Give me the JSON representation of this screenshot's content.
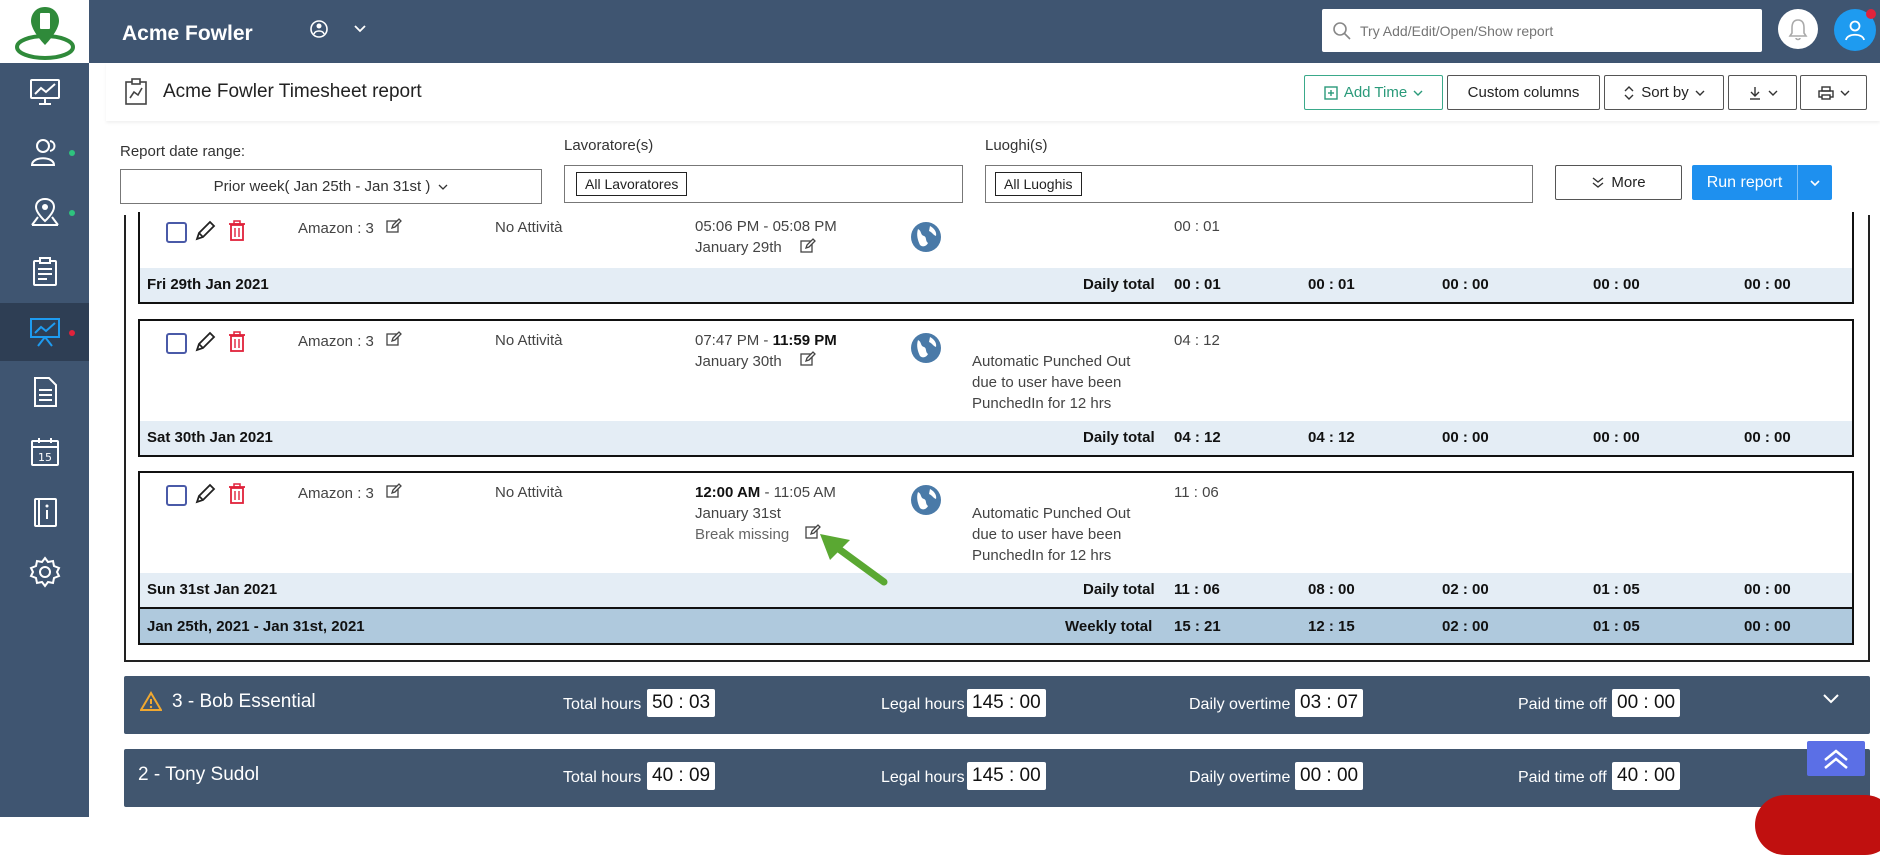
{
  "app": {
    "title": "Acme Fowler",
    "search_placeholder": "Try Add/Edit/Open/Show report"
  },
  "sidebar": {
    "items": [
      {
        "icon": "dashboard-icon",
        "dot": ""
      },
      {
        "icon": "users-icon",
        "dot": "#2ec27e"
      },
      {
        "icon": "map-pin-icon",
        "dot": "#2ec27e"
      },
      {
        "icon": "clipboard-icon",
        "dot": ""
      },
      {
        "icon": "reports-chart-icon",
        "dot": "#e0223b",
        "active": true
      },
      {
        "icon": "document-icon",
        "dot": ""
      },
      {
        "icon": "calendar-icon",
        "dot": ""
      },
      {
        "icon": "info-book-icon",
        "dot": ""
      },
      {
        "icon": "gear-icon",
        "dot": ""
      }
    ],
    "calendar_day": "15"
  },
  "report": {
    "title": "Acme Fowler Timesheet report",
    "buttons": {
      "add_time": "Add Time",
      "custom_columns": "Custom columns",
      "sort_by": "Sort by"
    }
  },
  "filters": {
    "date_range_label": "Report date range:",
    "date_range_value": "Prior week( Jan 25th - Jan 31st )",
    "workers_label": "Lavoratore(s)",
    "workers_chip": "All Lavoratores",
    "places_label": "Luoghi(s)",
    "places_chip": "All Luoghis",
    "more": "More",
    "run": "Run report"
  },
  "days": [
    {
      "job": "Amazon : 3",
      "activity": "No Attività",
      "time_start": "05:06 PM",
      "time_end": "05:08 PM",
      "date": "January 29th",
      "note": "",
      "duration": "00 : 01",
      "total_label": "Fri 29th Jan 2021",
      "daily_label": "Daily total",
      "totals": [
        "00 : 01",
        "00 : 01",
        "00 : 00",
        "00 : 00",
        "00 : 00"
      ]
    },
    {
      "job": "Amazon : 3",
      "activity": "No Attività",
      "time_start": "07:47 PM",
      "time_end": "11:59 PM",
      "date": "January 30th",
      "note": "Automatic Punched Out due to user have been PunchedIn for 12 hrs",
      "duration": "04 : 12",
      "total_label": "Sat 30th Jan 2021",
      "daily_label": "Daily total",
      "totals": [
        "04 : 12",
        "04 : 12",
        "00 : 00",
        "00 : 00",
        "00 : 00"
      ]
    },
    {
      "job": "Amazon : 3",
      "activity": "No Attività",
      "time_start": "12:00 AM",
      "time_end": "11:05 AM",
      "date": "January 31st",
      "warning": "Break missing",
      "note": "Automatic Punched Out due to user have been PunchedIn for 12 hrs",
      "duration": "11 : 06",
      "total_label": "Sun 31st Jan 2021",
      "daily_label": "Daily total",
      "totals": [
        "11 : 06",
        "08 : 00",
        "02 : 00",
        "01 : 05",
        "00 : 00"
      ]
    }
  ],
  "weekly": {
    "range": "Jan 25th, 2021  -  Jan 31st, 2021",
    "label": "Weekly total",
    "totals": [
      "15 : 21",
      "12 : 15",
      "02 : 00",
      "01 : 05",
      "00 : 00"
    ]
  },
  "employees": [
    {
      "name": "3 - Bob Essential",
      "warning": true,
      "total_hours_label": "Total hours",
      "total_hours": "50 : 03",
      "legal_hours_label": "Legal hours",
      "legal_hours": "145 : 00",
      "overtime_label": "Daily overtime",
      "overtime": "03 : 07",
      "pto_label": "Paid time off",
      "pto": "00 : 00"
    },
    {
      "name": "2 - Tony Sudol",
      "warning": false,
      "total_hours_label": "Total hours",
      "total_hours": "40 : 09",
      "legal_hours_label": "Legal hours",
      "legal_hours": "145 : 00",
      "overtime_label": "Daily overtime",
      "overtime": "00 : 00",
      "pto_label": "Paid time off",
      "pto": "40 : 00"
    }
  ],
  "colors": {
    "nav_bg": "#3f5571",
    "accent_blue": "#1e90ef",
    "delete_red": "#e0223b",
    "add_green": "#2a9a7a",
    "total_row": "#e4edf5",
    "weekly_row": "#afc9dd",
    "annotation_arrow": "#5aa832"
  }
}
